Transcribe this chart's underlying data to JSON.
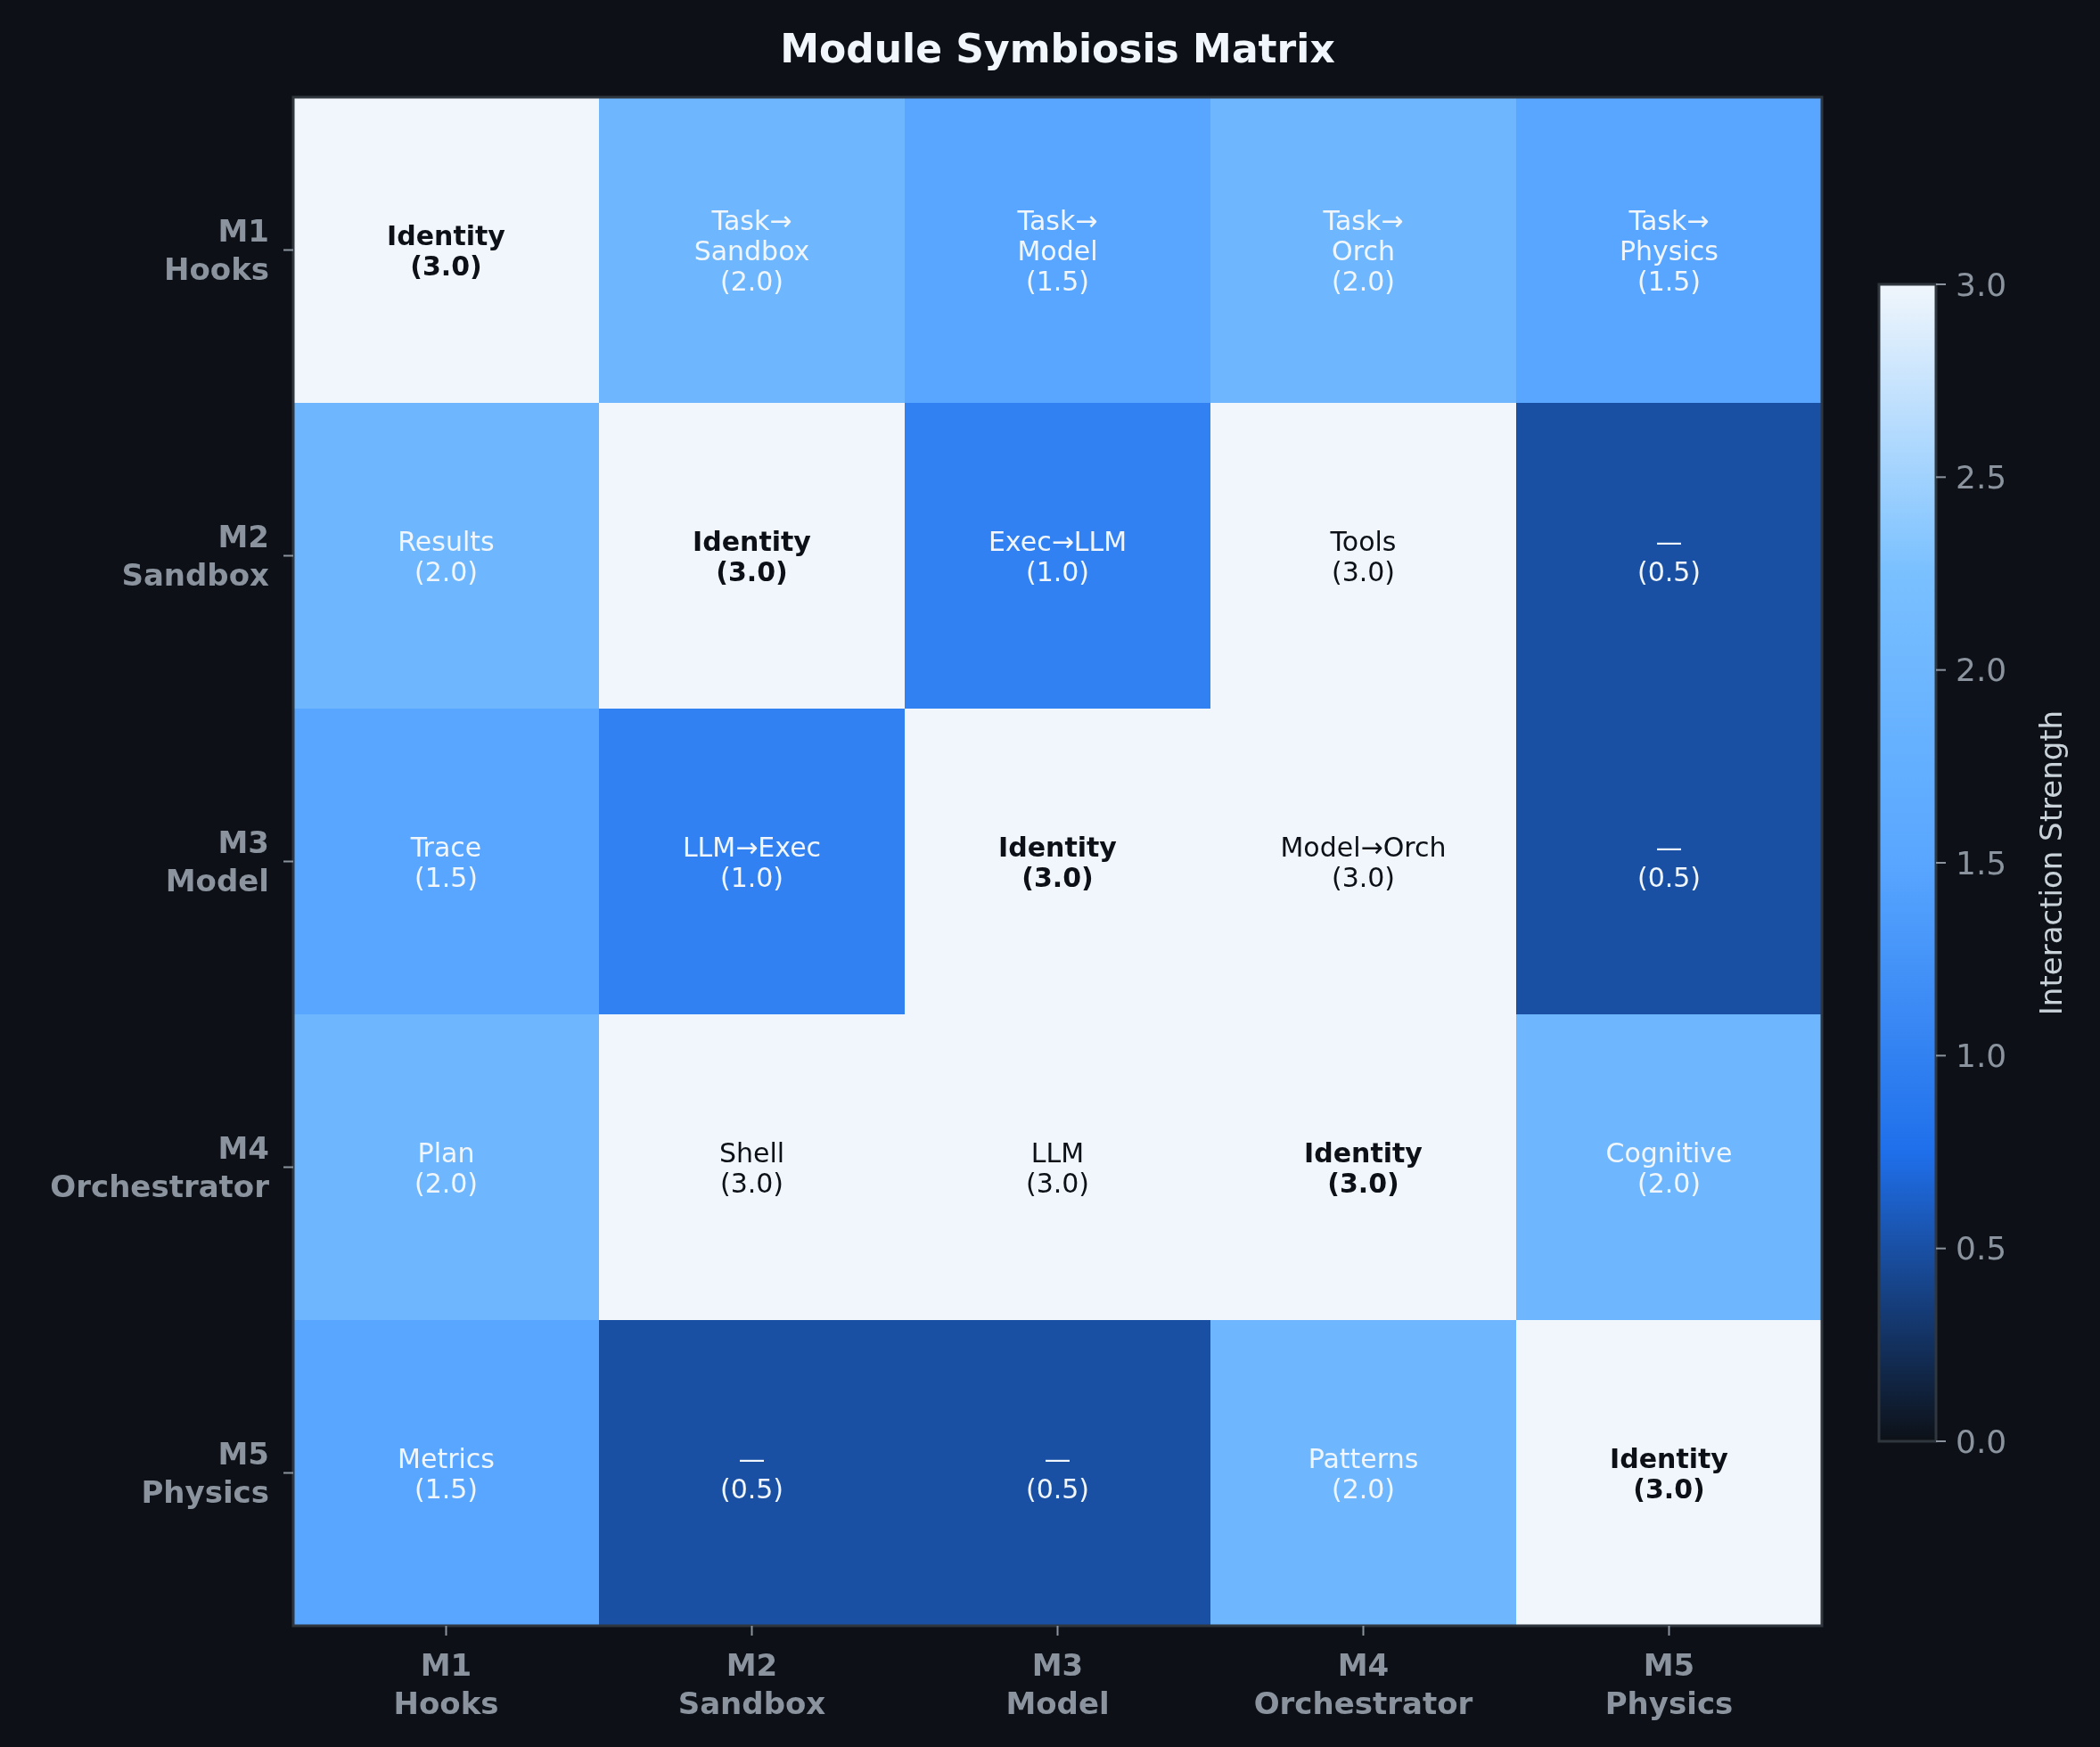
{
  "chart_data": {
    "type": "heatmap",
    "title": "Module Symbiosis Matrix",
    "categories": [
      "M1\nHooks",
      "M2\nSandbox",
      "M3\nModel",
      "M4\nOrchestrator",
      "M5\nPhysics"
    ],
    "y_categories": [
      "M1\nHooks",
      "M2\nSandbox",
      "M3\nModel",
      "M4\nOrchestrator",
      "M5\nPhysics"
    ],
    "cells": [
      [
        3.0,
        2.0,
        1.5,
        2.0,
        1.5
      ],
      [
        2.0,
        3.0,
        1.0,
        3.0,
        0.5
      ],
      [
        1.5,
        1.0,
        3.0,
        3.0,
        0.5
      ],
      [
        2.0,
        3.0,
        3.0,
        3.0,
        2.0
      ],
      [
        1.5,
        0.5,
        0.5,
        2.0,
        3.0
      ]
    ],
    "cell_labels": [
      [
        "Identity\n(3.0)",
        "Task→\nSandbox\n(2.0)",
        "Task→\nModel\n(1.5)",
        "Task→\nOrch\n(2.0)",
        "Task→\nPhysics\n(1.5)"
      ],
      [
        "Results\n(2.0)",
        "Identity\n(3.0)",
        "Exec→LLM\n(1.0)",
        "Tools\n(3.0)",
        "—\n(0.5)"
      ],
      [
        "Trace\n(1.5)",
        "LLM→Exec\n(1.0)",
        "Identity\n(3.0)",
        "Model→Orch\n(3.0)",
        "—\n(0.5)"
      ],
      [
        "Plan\n(2.0)",
        "Shell\n(3.0)",
        "LLM\n(3.0)",
        "Identity\n(3.0)",
        "Cognitive\n(2.0)"
      ],
      [
        "Metrics\n(1.5)",
        "—\n(0.5)",
        "—\n(0.5)",
        "Patterns\n(2.0)",
        "Identity\n(3.0)"
      ]
    ],
    "clabel": "Interaction Strength",
    "clim": [
      0,
      3
    ],
    "cticks": [
      {
        "value": 0,
        "label": "0.0"
      },
      0.5,
      {
        "value": 1,
        "label": "1.0"
      },
      1.5,
      {
        "value": 2,
        "label": "2.0"
      },
      2.5,
      {
        "value": 3,
        "label": "3.0"
      }
    ]
  }
}
